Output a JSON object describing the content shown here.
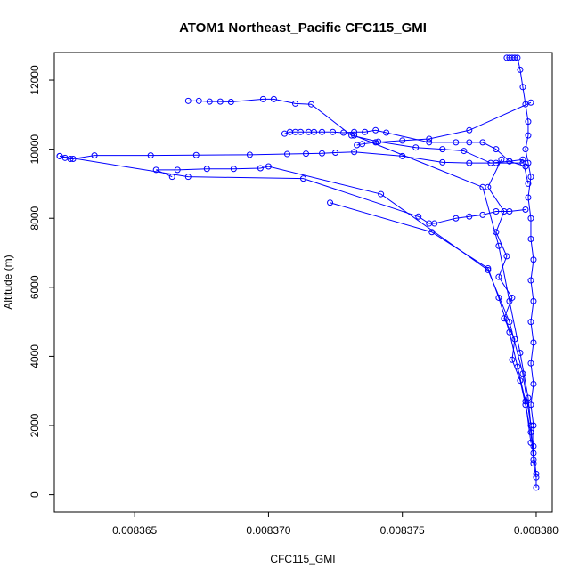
{
  "chart_data": {
    "type": "line",
    "title": "ATOM1 Northeast_Pacific CFC115_GMI",
    "xlabel": "CFC115_GMI",
    "ylabel": "Altitude (m)",
    "xlim": [
      0.008362,
      0.0083806
    ],
    "ylim": [
      -500,
      12800
    ],
    "x_ticks": [
      0.008365,
      0.00837,
      0.008375,
      0.00838
    ],
    "x_tick_labels": [
      "0.008365",
      "0.008370",
      "0.008375",
      "0.008380"
    ],
    "y_ticks": [
      0,
      2000,
      4000,
      6000,
      8000,
      10000,
      12000
    ],
    "y_tick_labels": [
      "0",
      "2000",
      "4000",
      "6000",
      "8000",
      "10000",
      "12000"
    ],
    "grid": false,
    "marker": "open-circle",
    "series_color": "#0000ff",
    "series": [
      {
        "points": [
          [
            0.00838,
            200
          ],
          [
            0.00838,
            500
          ],
          [
            0.0083799,
            900
          ],
          [
            0.0083799,
            1400
          ],
          [
            0.0083799,
            2000
          ],
          [
            0.0083798,
            2600
          ],
          [
            0.0083799,
            3200
          ],
          [
            0.0083798,
            3800
          ],
          [
            0.0083799,
            4400
          ],
          [
            0.0083798,
            5000
          ],
          [
            0.0083799,
            5600
          ],
          [
            0.0083798,
            6200
          ],
          [
            0.0083799,
            6800
          ],
          [
            0.0083798,
            7400
          ],
          [
            0.0083798,
            8000
          ],
          [
            0.0083797,
            8600
          ],
          [
            0.0083798,
            9200
          ],
          [
            0.0083797,
            9600
          ],
          [
            0.0083796,
            10000
          ],
          [
            0.0083797,
            10400
          ],
          [
            0.0083797,
            10800
          ],
          [
            0.0083796,
            11300
          ],
          [
            0.0083795,
            11800
          ],
          [
            0.0083794,
            12300
          ],
          [
            0.0083793,
            12650
          ],
          [
            0.0083792,
            12650
          ],
          [
            0.0083791,
            12650
          ],
          [
            0.008379,
            12650
          ],
          [
            0.0083789,
            12650
          ]
        ]
      },
      {
        "points": [
          [
            0.0083798,
            11350
          ],
          [
            0.0083775,
            10550
          ],
          [
            0.008376,
            10300
          ],
          [
            0.008375,
            10250
          ],
          [
            0.008374,
            10200
          ],
          [
            0.0083735,
            10150
          ],
          [
            0.0083733,
            10120
          ]
        ]
      },
      {
        "points": [
          [
            0.008367,
            11400
          ],
          [
            0.0083674,
            11400
          ],
          [
            0.0083678,
            11380
          ],
          [
            0.0083682,
            11380
          ],
          [
            0.0083686,
            11370
          ],
          [
            0.0083698,
            11450
          ],
          [
            0.0083702,
            11450
          ],
          [
            0.008371,
            11320
          ],
          [
            0.0083716,
            11300
          ],
          [
            0.0083731,
            10400
          ],
          [
            0.0083741,
            10220
          ],
          [
            0.0083755,
            10050
          ],
          [
            0.0083765,
            10000
          ],
          [
            0.0083773,
            9950
          ],
          [
            0.0083783,
            9600
          ],
          [
            0.008379,
            9650
          ],
          [
            0.0083795,
            9700
          ],
          [
            0.0083797,
            9000
          ]
        ]
      },
      {
        "points": [
          [
            0.0083706,
            10450
          ],
          [
            0.0083708,
            10500
          ],
          [
            0.008371,
            10500
          ],
          [
            0.0083712,
            10500
          ],
          [
            0.0083715,
            10500
          ],
          [
            0.0083717,
            10500
          ],
          [
            0.008372,
            10500
          ],
          [
            0.0083724,
            10500
          ],
          [
            0.0083728,
            10480
          ],
          [
            0.0083732,
            10500
          ],
          [
            0.0083736,
            10500
          ],
          [
            0.008374,
            10550
          ],
          [
            0.0083744,
            10480
          ],
          [
            0.008376,
            10200
          ],
          [
            0.008377,
            10200
          ],
          [
            0.0083775,
            10200
          ],
          [
            0.008378,
            10200
          ],
          [
            0.0083785,
            10000
          ],
          [
            0.008379,
            9650
          ],
          [
            0.0083796,
            9500
          ]
        ]
      },
      {
        "points": [
          [
            0.0083622,
            9800
          ],
          [
            0.0083624,
            9750
          ],
          [
            0.0083626,
            9720
          ],
          [
            0.0083627,
            9720
          ],
          [
            0.0083635,
            9820
          ],
          [
            0.0083656,
            9820
          ],
          [
            0.0083673,
            9830
          ],
          [
            0.0083693,
            9840
          ],
          [
            0.0083707,
            9860
          ],
          [
            0.0083714,
            9870
          ],
          [
            0.008372,
            9880
          ],
          [
            0.0083725,
            9900
          ],
          [
            0.0083732,
            9920
          ],
          [
            0.008375,
            9800
          ],
          [
            0.0083765,
            9620
          ],
          [
            0.0083775,
            9600
          ],
          [
            0.0083785,
            9600
          ],
          [
            0.0083795,
            9600
          ]
        ]
      },
      {
        "points": [
          [
            0.0083664,
            9200
          ],
          [
            0.0083658,
            9400
          ],
          [
            0.0083666,
            9400
          ],
          [
            0.0083677,
            9430
          ],
          [
            0.0083687,
            9430
          ],
          [
            0.0083697,
            9450
          ],
          [
            0.00837,
            9500
          ],
          [
            0.0083742,
            8700
          ],
          [
            0.0083782,
            6500
          ],
          [
            0.008379,
            5000
          ],
          [
            0.0083795,
            3500
          ],
          [
            0.0083798,
            2000
          ]
        ]
      },
      {
        "points": [
          [
            0.0083622,
            9800
          ],
          [
            0.008367,
            9200
          ],
          [
            0.0083713,
            9150
          ],
          [
            0.0083756,
            8050
          ],
          [
            0.008376,
            7850
          ],
          [
            0.0083762,
            7850
          ],
          [
            0.008377,
            8000
          ],
          [
            0.0083775,
            8050
          ],
          [
            0.008378,
            8100
          ],
          [
            0.0083785,
            8200
          ],
          [
            0.008379,
            8200
          ],
          [
            0.0083796,
            8250
          ]
        ]
      },
      {
        "points": [
          [
            0.0083723,
            8450
          ],
          [
            0.0083761,
            7600
          ],
          [
            0.0083782,
            6550
          ],
          [
            0.0083786,
            5700
          ],
          [
            0.008379,
            4700
          ],
          [
            0.0083793,
            3700
          ],
          [
            0.0083796,
            2700
          ],
          [
            0.0083798,
            1500
          ]
        ]
      },
      {
        "points": [
          [
            0.0083732,
            10400
          ],
          [
            0.008378,
            8900
          ],
          [
            0.0083786,
            7200
          ],
          [
            0.008379,
            5600
          ],
          [
            0.0083794,
            4100
          ],
          [
            0.0083797,
            2800
          ],
          [
            0.0083799,
            1200
          ],
          [
            0.00838,
            600
          ]
        ]
      },
      {
        "points": [
          [
            0.0083787,
            9700
          ],
          [
            0.0083782,
            8900
          ],
          [
            0.0083788,
            8200
          ],
          [
            0.0083785,
            7600
          ],
          [
            0.0083789,
            6900
          ],
          [
            0.0083786,
            6300
          ],
          [
            0.0083791,
            5700
          ],
          [
            0.0083788,
            5100
          ],
          [
            0.0083792,
            4500
          ],
          [
            0.0083791,
            3900
          ],
          [
            0.0083794,
            3300
          ],
          [
            0.0083796,
            2600
          ],
          [
            0.0083798,
            1800
          ],
          [
            0.0083799,
            1000
          ]
        ]
      }
    ]
  }
}
